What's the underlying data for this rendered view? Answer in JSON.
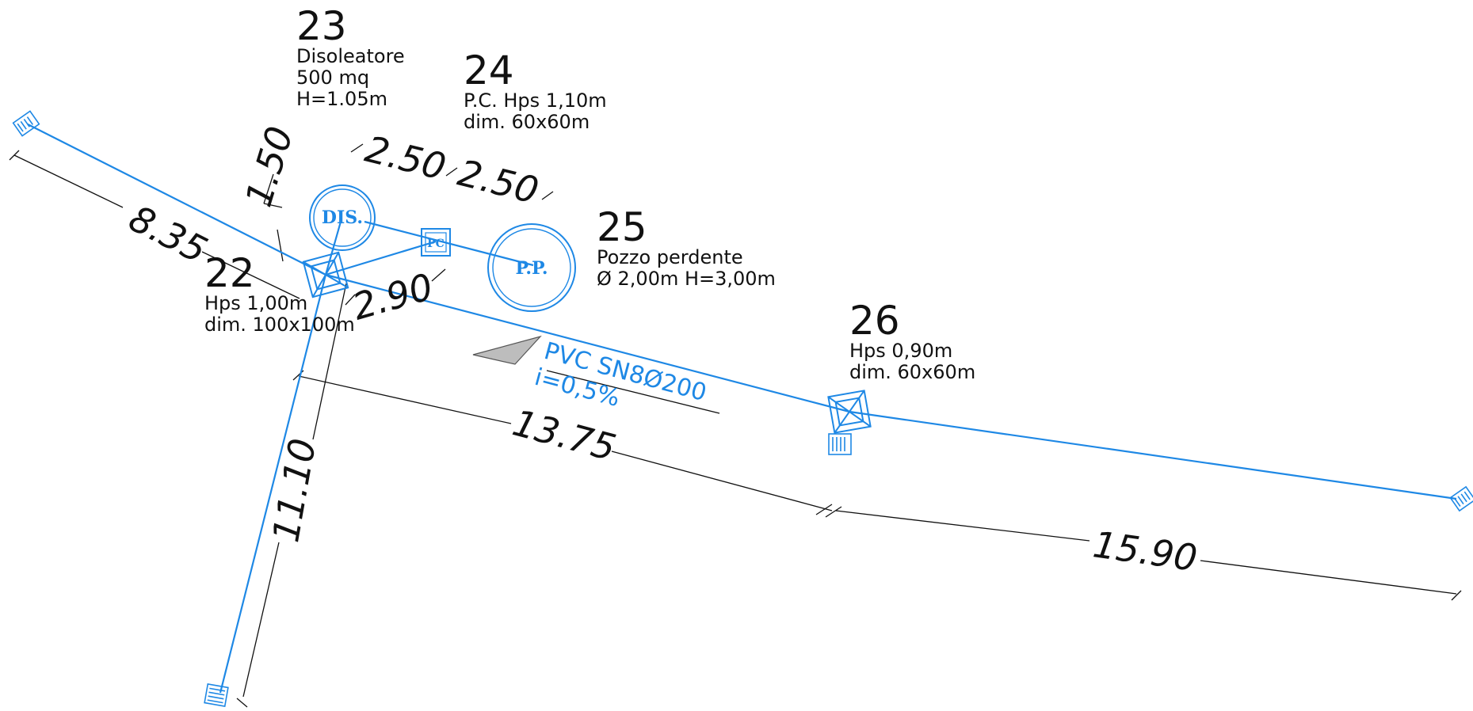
{
  "nodes": [
    {
      "id": "22",
      "lines": [
        "Hps 1,00m",
        "dim. 100x100m"
      ]
    },
    {
      "id": "23",
      "lines": [
        "Disoleatore",
        "500 mq",
        "H=1.05m"
      ]
    },
    {
      "id": "24",
      "lines": [
        "P.C. Hps 1,10m",
        "dim. 60x60m"
      ]
    },
    {
      "id": "25",
      "lines": [
        "Pozzo perdente",
        "Ø 2,00m H=3,00m"
      ]
    },
    {
      "id": "26",
      "lines": [
        "Hps 0,90m",
        "dim. 60x60m"
      ]
    }
  ],
  "dimensions": {
    "d835": "8.35",
    "d150": "1.50",
    "d250a": "2.50",
    "d250b": "2.50",
    "d290": "2.90",
    "d1110": "11.10",
    "d1375": "13.75",
    "d1590": "15.90"
  },
  "pipe": {
    "spec": "PVC SN8Ø200",
    "slope": "i=0,5%"
  },
  "symbols": {
    "dis": "DIS.",
    "pp": "P.P.",
    "pc": "PC"
  },
  "colors": {
    "pipe": "#1e88e5",
    "dim_line": "#111111",
    "arrow_fill": "#bdbdbd"
  }
}
